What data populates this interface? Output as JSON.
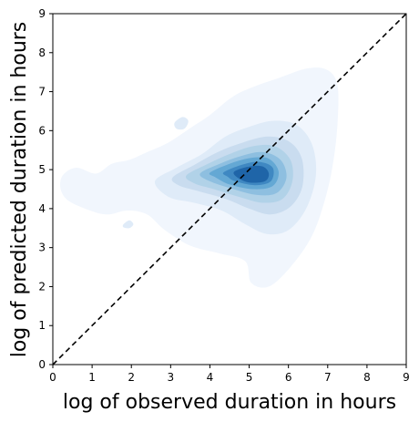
{
  "chart_data": {
    "type": "contour",
    "title": "",
    "xlabel": "log of observed duration in hours",
    "ylabel": "log of predicted duration in hours",
    "xlim": [
      0,
      9
    ],
    "ylim": [
      0,
      9
    ],
    "xticks": [
      0,
      1,
      2,
      3,
      4,
      5,
      6,
      7,
      8,
      9
    ],
    "yticks": [
      0,
      1,
      2,
      3,
      4,
      5,
      6,
      7,
      8,
      9
    ],
    "grid": false,
    "legend": "none",
    "colormap": "Blues",
    "diagonal_line": {
      "from": [
        0,
        0
      ],
      "to": [
        9,
        9
      ],
      "style": "dashed",
      "color": "#000000"
    },
    "density_levels": [
      {
        "level": 1,
        "color": "#f1f6fd",
        "polygon": [
          [
            0.2,
            4.5
          ],
          [
            0.25,
            4.85
          ],
          [
            0.6,
            5.05
          ],
          [
            1.1,
            4.9
          ],
          [
            1.5,
            5.15
          ],
          [
            1.95,
            5.25
          ],
          [
            2.4,
            5.45
          ],
          [
            2.95,
            5.7
          ],
          [
            3.55,
            6.1
          ],
          [
            4.0,
            6.4
          ],
          [
            4.55,
            6.85
          ],
          [
            5.05,
            7.1
          ],
          [
            5.75,
            7.35
          ],
          [
            6.5,
            7.6
          ],
          [
            7.0,
            7.55
          ],
          [
            7.25,
            7.15
          ],
          [
            7.25,
            6.2
          ],
          [
            7.15,
            5.25
          ],
          [
            6.95,
            4.3
          ],
          [
            6.6,
            3.3
          ],
          [
            6.05,
            2.5
          ],
          [
            5.5,
            2.0
          ],
          [
            5.05,
            2.1
          ],
          [
            4.9,
            2.65
          ],
          [
            4.25,
            2.85
          ],
          [
            3.5,
            3.05
          ],
          [
            2.85,
            3.45
          ],
          [
            2.4,
            3.85
          ],
          [
            1.9,
            3.95
          ],
          [
            1.4,
            3.85
          ],
          [
            0.95,
            3.95
          ],
          [
            0.4,
            4.2
          ]
        ]
      },
      {
        "level": 2,
        "color": "#dfebf8",
        "polygon": [
          [
            2.6,
            4.7
          ],
          [
            3.15,
            5.05
          ],
          [
            3.8,
            5.4
          ],
          [
            4.4,
            5.85
          ],
          [
            5.0,
            6.1
          ],
          [
            5.6,
            6.25
          ],
          [
            6.2,
            6.15
          ],
          [
            6.6,
            5.65
          ],
          [
            6.7,
            4.85
          ],
          [
            6.45,
            4.0
          ],
          [
            6.0,
            3.45
          ],
          [
            5.45,
            3.35
          ],
          [
            4.9,
            3.6
          ],
          [
            4.3,
            3.95
          ],
          [
            3.6,
            4.15
          ],
          [
            2.95,
            4.3
          ]
        ]
      },
      {
        "level": 3,
        "color": "#c9dcef",
        "polygon": [
          [
            3.05,
            4.8
          ],
          [
            3.6,
            5.12
          ],
          [
            4.2,
            5.45
          ],
          [
            4.85,
            5.7
          ],
          [
            5.5,
            5.85
          ],
          [
            6.05,
            5.7
          ],
          [
            6.35,
            5.25
          ],
          [
            6.35,
            4.55
          ],
          [
            6.05,
            4.05
          ],
          [
            5.55,
            3.85
          ],
          [
            5.0,
            4.0
          ],
          [
            4.4,
            4.25
          ],
          [
            3.7,
            4.45
          ],
          [
            3.2,
            4.6
          ]
        ]
      },
      {
        "level": 4,
        "color": "#b1d2e8",
        "polygon": [
          [
            3.4,
            4.85
          ],
          [
            3.95,
            5.15
          ],
          [
            4.5,
            5.4
          ],
          [
            5.1,
            5.6
          ],
          [
            5.65,
            5.6
          ],
          [
            6.05,
            5.25
          ],
          [
            6.1,
            4.7
          ],
          [
            5.85,
            4.25
          ],
          [
            5.35,
            4.15
          ],
          [
            4.75,
            4.3
          ],
          [
            4.1,
            4.5
          ],
          [
            3.6,
            4.65
          ]
        ]
      },
      {
        "level": 5,
        "color": "#8ebfe0",
        "polygon": [
          [
            3.75,
            4.9
          ],
          [
            4.25,
            5.15
          ],
          [
            4.8,
            5.35
          ],
          [
            5.35,
            5.45
          ],
          [
            5.8,
            5.25
          ],
          [
            5.95,
            4.8
          ],
          [
            5.7,
            4.4
          ],
          [
            5.2,
            4.35
          ],
          [
            4.6,
            4.5
          ],
          [
            4.0,
            4.7
          ]
        ]
      },
      {
        "level": 6,
        "color": "#64a8d4",
        "polygon": [
          [
            4.0,
            4.92
          ],
          [
            4.5,
            5.15
          ],
          [
            5.05,
            5.3
          ],
          [
            5.5,
            5.28
          ],
          [
            5.75,
            4.95
          ],
          [
            5.6,
            4.58
          ],
          [
            5.1,
            4.5
          ],
          [
            4.5,
            4.62
          ],
          [
            4.15,
            4.8
          ]
        ]
      },
      {
        "level": 7,
        "color": "#3f88c2",
        "polygon": [
          [
            4.35,
            4.93
          ],
          [
            4.8,
            5.12
          ],
          [
            5.25,
            5.2
          ],
          [
            5.6,
            5.05
          ],
          [
            5.55,
            4.7
          ],
          [
            5.15,
            4.6
          ],
          [
            4.65,
            4.7
          ],
          [
            4.45,
            4.82
          ]
        ]
      },
      {
        "level": 8,
        "color": "#1f65a8",
        "polygon": [
          [
            4.62,
            4.95
          ],
          [
            5.0,
            5.08
          ],
          [
            5.35,
            5.08
          ],
          [
            5.5,
            4.9
          ],
          [
            5.4,
            4.7
          ],
          [
            5.0,
            4.67
          ],
          [
            4.7,
            4.8
          ]
        ]
      }
    ],
    "isolated_blobs": [
      {
        "color": "#dfebf8",
        "polygon": [
          [
            3.1,
            6.2
          ],
          [
            3.3,
            6.35
          ],
          [
            3.45,
            6.25
          ],
          [
            3.35,
            6.05
          ],
          [
            3.15,
            6.05
          ]
        ]
      },
      {
        "color": "#dfebf8",
        "polygon": [
          [
            1.8,
            3.6
          ],
          [
            1.95,
            3.7
          ],
          [
            2.05,
            3.6
          ],
          [
            1.95,
            3.5
          ],
          [
            1.8,
            3.52
          ]
        ]
      }
    ]
  }
}
